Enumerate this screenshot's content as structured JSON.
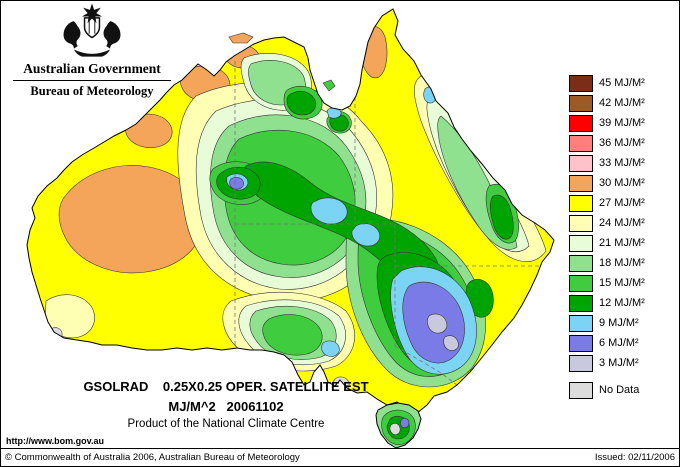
{
  "header": {
    "government": "Australian Government",
    "bureau": "Bureau of Meteorology"
  },
  "map_caption": {
    "line1": "GSOLRAD    0.25X0.25 OPER. SATELLITE EST",
    "line2": "MJ/M^2   20061102",
    "line3": "Product of the National Climate Centre"
  },
  "legend": {
    "items": [
      {
        "key": "45",
        "label": "45 MJ/M²",
        "color": "#7B2E17"
      },
      {
        "key": "42",
        "label": "42 MJ/M²",
        "color": "#9C5B24"
      },
      {
        "key": "39",
        "label": "39 MJ/M²",
        "color": "#FF0000"
      },
      {
        "key": "36",
        "label": "36 MJ/M²",
        "color": "#FF7F7F"
      },
      {
        "key": "33",
        "label": "33 MJ/M²",
        "color": "#FFC2CB"
      },
      {
        "key": "30",
        "label": "30 MJ/M²",
        "color": "#F5A55A"
      },
      {
        "key": "27",
        "label": "27 MJ/M²",
        "color": "#FFFF00"
      },
      {
        "key": "24",
        "label": "24 MJ/M²",
        "color": "#FFFFB4"
      },
      {
        "key": "21",
        "label": "21 MJ/M²",
        "color": "#E9FCD8"
      },
      {
        "key": "18",
        "label": "18 MJ/M²",
        "color": "#8FE08F"
      },
      {
        "key": "15",
        "label": "15 MJ/M²",
        "color": "#3FCC3F"
      },
      {
        "key": "12",
        "label": "12 MJ/M²",
        "color": "#00A400"
      },
      {
        "key": "9",
        "label": "9 MJ/M²",
        "color": "#7CD4F5"
      },
      {
        "key": "6",
        "label": "6 MJ/M²",
        "color": "#7B7BE8"
      },
      {
        "key": "3",
        "label": "3 MJ/M²",
        "color": "#C9C9DE"
      },
      {
        "key": "nodata",
        "label": "No Data",
        "color": "#DCDCDC"
      }
    ]
  },
  "footer": {
    "url": "http://www.bom.gov.au",
    "copyright": "© Commonwealth of Australia 2006, Australian Bureau of Meteorology",
    "issued": "Issued: 02/11/2006"
  }
}
